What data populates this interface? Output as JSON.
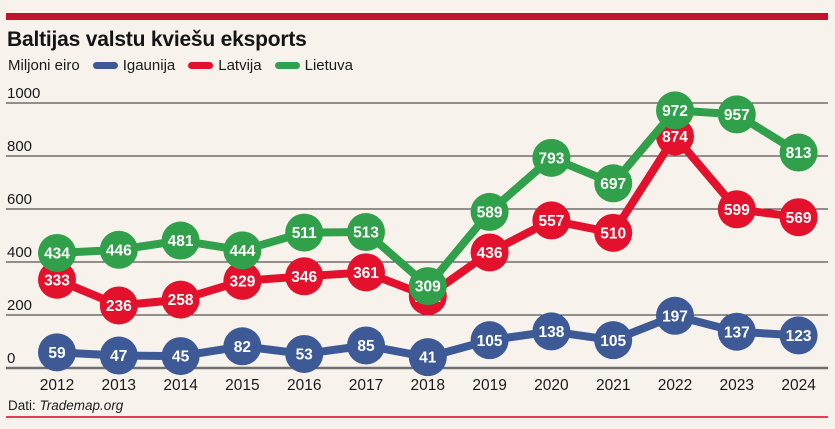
{
  "header": {
    "title": "Baltijas valstu kviešu eksports",
    "units_label": "Miljoni eiro"
  },
  "legend": [
    {
      "label": "Igaunija",
      "color": "#3d5a96"
    },
    {
      "label": "Latvija",
      "color": "#e3112c"
    },
    {
      "label": "Lietuva",
      "color": "#31a04a"
    }
  ],
  "footer": {
    "source_prefix": "Dati:",
    "source": "Trademap.org"
  },
  "colors": {
    "background": "#f8f2ec",
    "top_bar": "#c2122c",
    "bottom_line": "#e23e5c",
    "gridline": "#2b2b2b",
    "zero_axis": "#707070",
    "text": "#1a1a1a",
    "marker_label": "#ffffff"
  },
  "chart_data": {
    "type": "line",
    "title": "Baltijas valstu kviešu eksports",
    "ylabel": "Miljoni eiro",
    "xlabel": "",
    "categories": [
      "2012",
      "2013",
      "2014",
      "2015",
      "2016",
      "2017",
      "2018",
      "2019",
      "2020",
      "2021",
      "2022",
      "2023",
      "2024"
    ],
    "series": [
      {
        "name": "Igaunija",
        "color": "#3d5a96",
        "values": [
          59,
          47,
          45,
          82,
          53,
          85,
          41,
          105,
          138,
          105,
          197,
          137,
          123
        ]
      },
      {
        "name": "Latvija",
        "color": "#e3112c",
        "values": [
          333,
          236,
          258,
          329,
          346,
          361,
          271,
          436,
          557,
          510,
          874,
          599,
          569
        ]
      },
      {
        "name": "Lietuva",
        "color": "#31a04a",
        "values": [
          434,
          446,
          481,
          444,
          511,
          513,
          309,
          589,
          793,
          697,
          972,
          957,
          813
        ]
      }
    ],
    "ylim": [
      0,
      1000
    ],
    "yticks": [
      0,
      200,
      400,
      600,
      800,
      1000
    ],
    "grid": true,
    "legend_position": "top",
    "marker_labels": true,
    "source": "Dati: Trademap.org"
  }
}
